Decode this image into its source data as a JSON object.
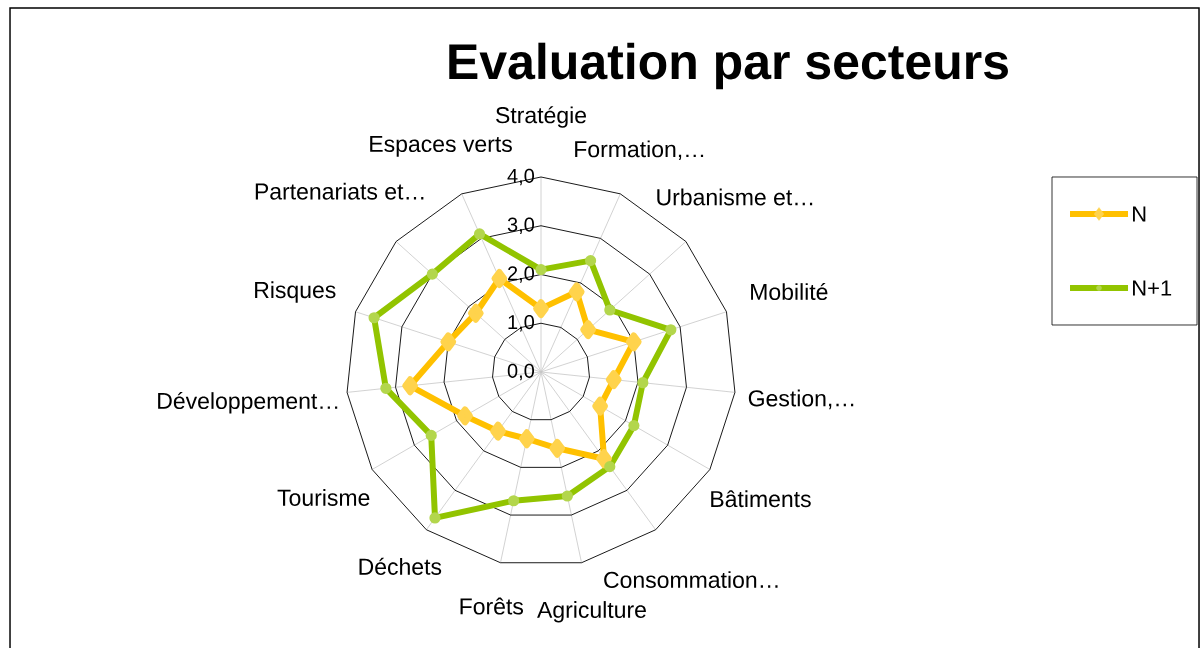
{
  "chart_data": {
    "type": "radar",
    "title": "Evaluation par secteurs",
    "categories": [
      "Stratégie",
      "Formation,…",
      "Urbanisme et…",
      "Mobilité",
      "Gestion,…",
      "Bâtiments",
      "Consommation…",
      "Agriculture",
      "Forêts",
      "Déchets",
      "Tourisme",
      "Développement…",
      "Risques",
      "Partenariats et…",
      "Espaces verts"
    ],
    "series": [
      {
        "name": "N",
        "color": "#ffc000",
        "marker": "diamond",
        "values": [
          1.3,
          1.8,
          1.3,
          2.0,
          1.5,
          1.4,
          2.2,
          1.6,
          1.4,
          1.5,
          1.8,
          2.7,
          2.0,
          1.8,
          2.1
        ]
      },
      {
        "name": "N+1",
        "color": "#92c400",
        "marker": "circle",
        "values": [
          2.1,
          2.5,
          1.9,
          2.8,
          2.1,
          2.2,
          2.4,
          2.6,
          2.7,
          3.7,
          2.6,
          3.2,
          3.6,
          3.0,
          3.1
        ]
      }
    ],
    "ylim": [
      0,
      4
    ],
    "yticks": [
      {
        "value": 0,
        "label": "0,0"
      },
      {
        "value": 1,
        "label": "1,0"
      },
      {
        "value": 2,
        "label": "2,0"
      },
      {
        "value": 3,
        "label": "3,0"
      },
      {
        "value": 4,
        "label": "4,0"
      }
    ],
    "grid": true,
    "legend": "right"
  }
}
